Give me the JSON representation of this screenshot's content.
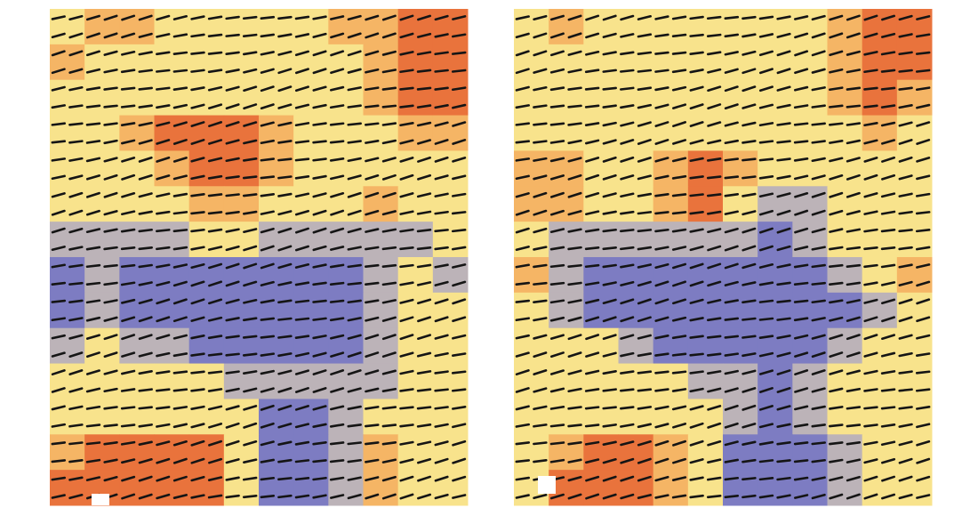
{
  "chart_data": [
    {
      "type": "heatmap",
      "colors": [
        "#7d7cc2",
        "#bcb3b8",
        "#f8e38c",
        "#f5b565",
        "#e9733c"
      ],
      "values": [
        [
          2,
          3,
          3,
          2,
          2,
          2,
          2,
          2,
          3,
          3,
          4,
          4
        ],
        [
          3,
          2,
          2,
          2,
          2,
          2,
          2,
          2,
          2,
          3,
          4,
          4
        ],
        [
          2,
          2,
          2,
          2,
          2,
          2,
          2,
          2,
          2,
          3,
          4,
          4
        ],
        [
          2,
          2,
          3,
          4,
          4,
          4,
          3,
          2,
          2,
          2,
          3,
          3
        ],
        [
          2,
          2,
          2,
          3,
          4,
          4,
          3,
          2,
          2,
          2,
          2,
          2
        ],
        [
          2,
          2,
          2,
          2,
          3,
          3,
          2,
          2,
          2,
          3,
          2,
          2
        ],
        [
          1,
          1,
          1,
          1,
          2,
          2,
          1,
          1,
          1,
          1,
          1,
          2
        ],
        [
          0,
          1,
          0,
          0,
          0,
          0,
          0,
          0,
          0,
          1,
          2,
          1
        ],
        [
          0,
          1,
          0,
          0,
          0,
          0,
          0,
          0,
          0,
          1,
          2,
          2
        ],
        [
          1,
          2,
          1,
          1,
          0,
          0,
          0,
          0,
          0,
          1,
          2,
          2
        ],
        [
          2,
          2,
          2,
          2,
          2,
          1,
          1,
          1,
          1,
          1,
          2,
          2
        ],
        [
          2,
          2,
          2,
          2,
          2,
          2,
          0,
          0,
          1,
          2,
          2,
          2
        ],
        [
          3,
          4,
          4,
          4,
          4,
          2,
          0,
          0,
          1,
          3,
          2,
          2
        ],
        [
          4,
          4,
          4,
          4,
          4,
          2,
          0,
          0,
          1,
          3,
          2,
          2
        ]
      ]
    },
    {
      "type": "heatmap",
      "colors": [
        "#7d7cc2",
        "#bcb3b8",
        "#f8e38c",
        "#f5b565",
        "#e9733c"
      ],
      "values": [
        [
          2,
          3,
          2,
          2,
          2,
          2,
          2,
          2,
          2,
          3,
          4,
          4
        ],
        [
          2,
          2,
          2,
          2,
          2,
          2,
          2,
          2,
          2,
          3,
          4,
          4
        ],
        [
          2,
          2,
          2,
          2,
          2,
          2,
          2,
          2,
          2,
          3,
          4,
          3
        ],
        [
          2,
          2,
          2,
          2,
          2,
          2,
          2,
          2,
          2,
          2,
          3,
          2
        ],
        [
          3,
          3,
          2,
          2,
          3,
          4,
          3,
          2,
          2,
          2,
          2,
          2
        ],
        [
          3,
          3,
          2,
          2,
          3,
          4,
          2,
          1,
          1,
          2,
          2,
          2
        ],
        [
          2,
          1,
          1,
          1,
          1,
          1,
          1,
          0,
          1,
          2,
          2,
          2
        ],
        [
          3,
          1,
          0,
          0,
          0,
          0,
          0,
          0,
          0,
          1,
          2,
          3
        ],
        [
          2,
          1,
          0,
          0,
          0,
          0,
          0,
          0,
          0,
          0,
          1,
          2
        ],
        [
          2,
          2,
          2,
          1,
          0,
          0,
          0,
          0,
          0,
          1,
          2,
          2
        ],
        [
          2,
          2,
          2,
          2,
          2,
          1,
          1,
          0,
          1,
          2,
          2,
          2
        ],
        [
          2,
          2,
          2,
          2,
          2,
          2,
          1,
          0,
          1,
          2,
          2,
          2
        ],
        [
          2,
          3,
          4,
          4,
          3,
          2,
          0,
          0,
          0,
          1,
          2,
          2
        ],
        [
          2,
          4,
          4,
          4,
          3,
          2,
          0,
          0,
          0,
          1,
          2,
          2
        ]
      ]
    }
  ]
}
